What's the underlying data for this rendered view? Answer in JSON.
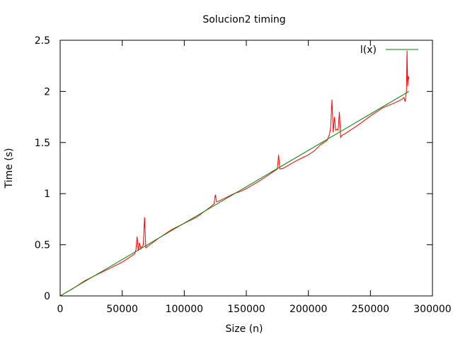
{
  "chart_data": {
    "type": "line",
    "title": "Solucion2 timing",
    "xlabel": "Size (n)",
    "ylabel": "Time (s)",
    "xlim": [
      0,
      300000
    ],
    "ylim": [
      0,
      2.5
    ],
    "grid": false,
    "legend_position": "top-right",
    "x_ticks": [
      {
        "value": 0,
        "label": "0"
      },
      {
        "value": 50000,
        "label": "50000"
      },
      {
        "value": 100000,
        "label": "100000"
      },
      {
        "value": 150000,
        "label": "150000"
      },
      {
        "value": 200000,
        "label": "200000"
      },
      {
        "value": 250000,
        "label": "250000"
      },
      {
        "value": 300000,
        "label": "300000"
      }
    ],
    "y_ticks": [
      {
        "value": 0,
        "label": "0"
      },
      {
        "value": 0.5,
        "label": "0.5"
      },
      {
        "value": 1,
        "label": "1"
      },
      {
        "value": 1.5,
        "label": "1.5"
      },
      {
        "value": 2,
        "label": "2"
      },
      {
        "value": 2.5,
        "label": "2.5"
      }
    ],
    "series": [
      {
        "name": "",
        "color": "#ff0000",
        "x": [
          0,
          10000,
          20000,
          30000,
          40000,
          50000,
          55000,
          60000,
          61000,
          62000,
          63000,
          64000,
          65000,
          66000,
          67000,
          68000,
          69000,
          70000,
          80000,
          90000,
          100000,
          110000,
          120000,
          124000,
          125000,
          126000,
          130000,
          140000,
          145000,
          150000,
          160000,
          170000,
          175000,
          176000,
          177000,
          180000,
          190000,
          195000,
          200000,
          205000,
          210000,
          215000,
          217000,
          218000,
          219000,
          220000,
          221000,
          222000,
          223000,
          224000,
          225000,
          226000,
          227000,
          230000,
          240000,
          250000,
          260000,
          270000,
          275000,
          277000,
          278000,
          279000,
          279500,
          280000,
          280500,
          281000
        ],
        "y": [
          0,
          0.07,
          0.15,
          0.21,
          0.27,
          0.33,
          0.37,
          0.41,
          0.45,
          0.58,
          0.44,
          0.52,
          0.46,
          0.48,
          0.5,
          0.77,
          0.47,
          0.48,
          0.57,
          0.65,
          0.71,
          0.77,
          0.86,
          0.9,
          0.99,
          0.92,
          0.94,
          1.0,
          1.02,
          1.05,
          1.12,
          1.2,
          1.24,
          1.38,
          1.24,
          1.25,
          1.32,
          1.35,
          1.38,
          1.42,
          1.48,
          1.52,
          1.58,
          1.65,
          1.92,
          1.6,
          1.75,
          1.62,
          1.63,
          1.62,
          1.8,
          1.55,
          1.57,
          1.59,
          1.67,
          1.76,
          1.84,
          1.89,
          1.92,
          1.94,
          1.9,
          2.0,
          2.4,
          2.05,
          2.15,
          2.12
        ]
      },
      {
        "name": "l(x)",
        "color": "#008000",
        "x": [
          0,
          281000
        ],
        "y": [
          0,
          2.0
        ]
      }
    ]
  }
}
